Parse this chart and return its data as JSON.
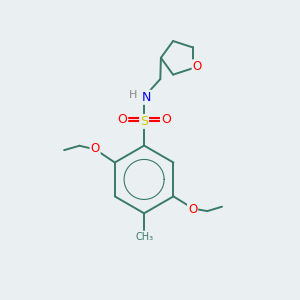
{
  "bg_color": "#eaeff2",
  "bond_color": "#3a7a6a",
  "atom_colors": {
    "O": "#ff0000",
    "N": "#0000ee",
    "S": "#cccc00",
    "H": "#888888",
    "C": "#3a7a6a"
  }
}
